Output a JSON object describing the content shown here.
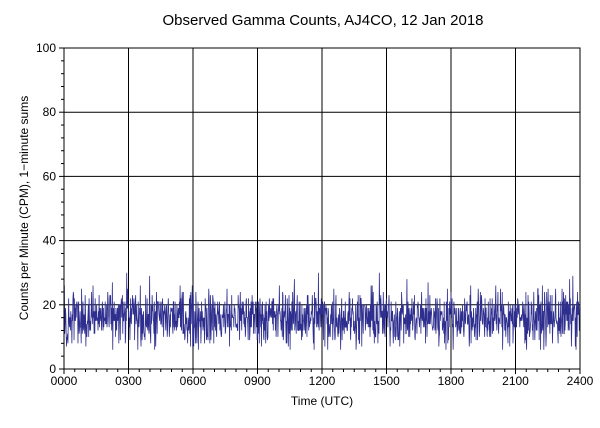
{
  "chart_data": {
    "type": "line",
    "title": "Observed Gamma Counts, AJ4CO, 12 Jan 2018",
    "xlabel": "Time (UTC)",
    "ylabel": "Counts per Minute (CPM), 1−minute sums",
    "xlim": [
      0,
      1440
    ],
    "ylim": [
      0,
      100
    ],
    "x_units": "minutes since 0000 UTC",
    "x_ticks": [
      {
        "value": 0,
        "label": "0000"
      },
      {
        "value": 180,
        "label": "0300"
      },
      {
        "value": 360,
        "label": "0600"
      },
      {
        "value": 540,
        "label": "0900"
      },
      {
        "value": 720,
        "label": "1200"
      },
      {
        "value": 900,
        "label": "1500"
      },
      {
        "value": 1080,
        "label": "1800"
      },
      {
        "value": 1260,
        "label": "2100"
      },
      {
        "value": 1440,
        "label": "2400"
      }
    ],
    "y_ticks": [
      0,
      20,
      40,
      60,
      80,
      100
    ],
    "grid": true,
    "series": [
      {
        "name": "",
        "color": "#2e2e8f",
        "resolution": "1-minute sums",
        "summary": {
          "mean_cpm": 16,
          "min_cpm": 6,
          "max_cpm": 30
        },
        "notable_peaks": [
          {
            "x": 175,
            "y": 30
          },
          {
            "x": 710,
            "y": 30
          },
          {
            "x": 880,
            "y": 30
          },
          {
            "x": 1420,
            "y": 29
          }
        ]
      }
    ]
  },
  "colors": {
    "background": "#ffffff",
    "grid": "#000000",
    "series": "#2e2e8f"
  }
}
